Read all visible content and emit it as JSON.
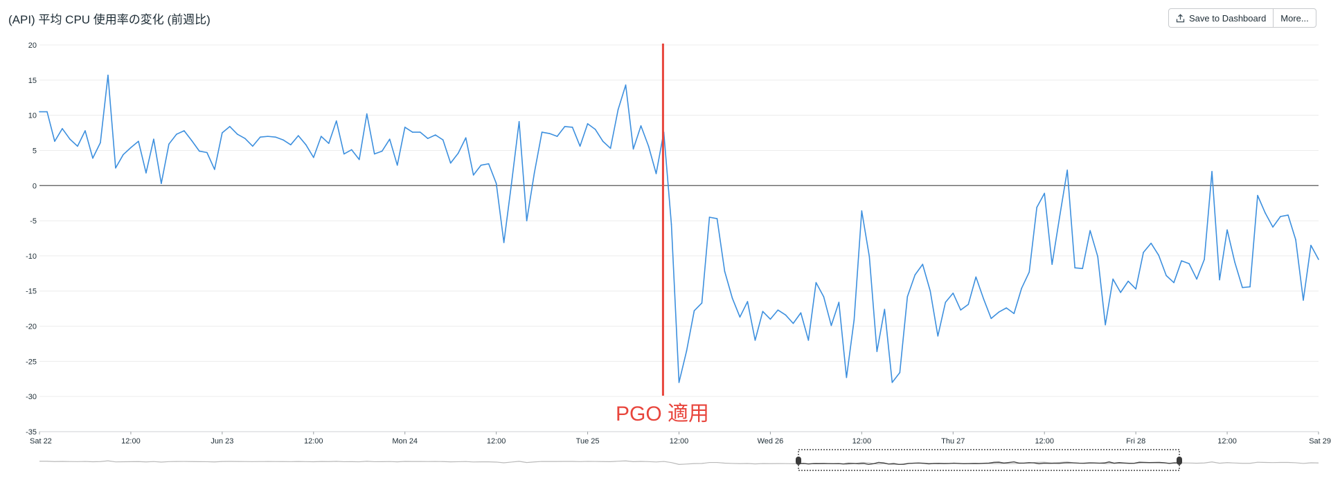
{
  "header": {
    "title": "(API) 平均 CPU 使用率の変化 (前週比)",
    "save_label": "Save to Dashboard",
    "more_label": "More...",
    "upload_icon": "upload-icon"
  },
  "colors": {
    "series": "#3c8fde",
    "annotation": "#e8453c",
    "zero_line": "#555555",
    "grid": "#ececec",
    "overview": "#b9b9b9",
    "overview_selected": "#444444"
  },
  "chart_data": {
    "type": "line",
    "title": "(API) 平均 CPU 使用率の変化 (前週比)",
    "xlabel": "",
    "ylabel": "",
    "ylim": [
      -35,
      20
    ],
    "yticks": [
      20,
      15,
      10,
      5,
      0,
      -5,
      -10,
      -15,
      -20,
      -25,
      -30,
      -35
    ],
    "xlim_hours": [
      0,
      168
    ],
    "xticks": [
      {
        "hour": 0,
        "label": "Sat 22"
      },
      {
        "hour": 12,
        "label": "12:00"
      },
      {
        "hour": 24,
        "label": "Jun 23"
      },
      {
        "hour": 36,
        "label": "12:00"
      },
      {
        "hour": 48,
        "label": "Mon 24"
      },
      {
        "hour": 60,
        "label": "12:00"
      },
      {
        "hour": 72,
        "label": "Tue 25"
      },
      {
        "hour": 84,
        "label": "12:00"
      },
      {
        "hour": 96,
        "label": "Wed 26"
      },
      {
        "hour": 108,
        "label": "12:00"
      },
      {
        "hour": 120,
        "label": "Thu 27"
      },
      {
        "hour": 132,
        "label": "12:00"
      },
      {
        "hour": 144,
        "label": "Fri 28"
      },
      {
        "hour": 156,
        "label": "12:00"
      },
      {
        "hour": 168,
        "label": "Sat 29"
      }
    ],
    "grid": true,
    "legend": "none",
    "annotation": {
      "hour": 81.9,
      "label": "PGO 適用"
    },
    "series": [
      {
        "interval_hours": 1,
        "values": [
          10.5,
          10.5,
          6.3,
          8.1,
          6.6,
          5.6,
          7.8,
          3.9,
          6.1,
          15.7,
          2.5,
          4.4,
          5.4,
          6.3,
          1.8,
          6.6,
          0.3,
          5.9,
          7.3,
          7.8,
          6.4,
          4.9,
          4.7,
          2.3,
          7.5,
          8.4,
          7.3,
          6.7,
          5.6,
          6.9,
          7.0,
          6.9,
          6.5,
          5.8,
          7.1,
          5.8,
          4.0,
          7.0,
          6.0,
          9.2,
          4.5,
          5.1,
          3.7,
          10.2,
          4.5,
          4.9,
          6.6,
          2.9,
          8.3,
          7.6,
          7.6,
          6.7,
          7.2,
          6.5,
          3.2,
          4.6,
          6.8,
          1.5,
          2.9,
          3.1,
          0.3,
          -8.1,
          0.3,
          9.1,
          -5.0,
          1.8,
          7.6,
          7.4,
          7.0,
          8.4,
          8.3,
          5.6,
          8.8,
          8.0,
          6.3,
          5.3,
          10.8,
          14.3,
          5.2,
          8.5,
          5.6,
          1.7,
          7.6,
          -5.5,
          -28.0,
          -23.5,
          -17.8,
          -16.7,
          -4.5,
          -4.7,
          -12.2,
          -16.0,
          -18.7,
          -16.5,
          -22.0,
          -17.9,
          -19.0,
          -17.7,
          -18.4,
          -19.6,
          -18.1,
          -22.0,
          -13.8,
          -15.8,
          -19.9,
          -16.6,
          -27.3,
          -19.1,
          -3.6,
          -10.1,
          -23.6,
          -17.6,
          -28.0,
          -26.6,
          -15.8,
          -12.7,
          -11.2,
          -15.0,
          -21.4,
          -16.6,
          -15.3,
          -17.7,
          -16.9,
          -13.0,
          -16.1,
          -18.9,
          -18.0,
          -17.4,
          -18.2,
          -14.6,
          -12.3,
          -3.1,
          -1.1,
          -11.2,
          -4.4,
          2.2,
          -11.7,
          -11.8,
          -6.4,
          -10.1,
          -19.8,
          -13.3,
          -15.2,
          -13.6,
          -14.7,
          -9.5,
          -8.2,
          -9.9,
          -12.8,
          -13.8,
          -10.7,
          -11.1,
          -13.3,
          -10.5,
          2.0,
          -13.4,
          -6.3,
          -10.9,
          -14.5,
          -14.4,
          -1.4,
          -3.9,
          -5.9,
          -4.4,
          -4.2,
          -7.7,
          -16.3,
          -8.5,
          -10.5
        ]
      }
    ]
  }
}
